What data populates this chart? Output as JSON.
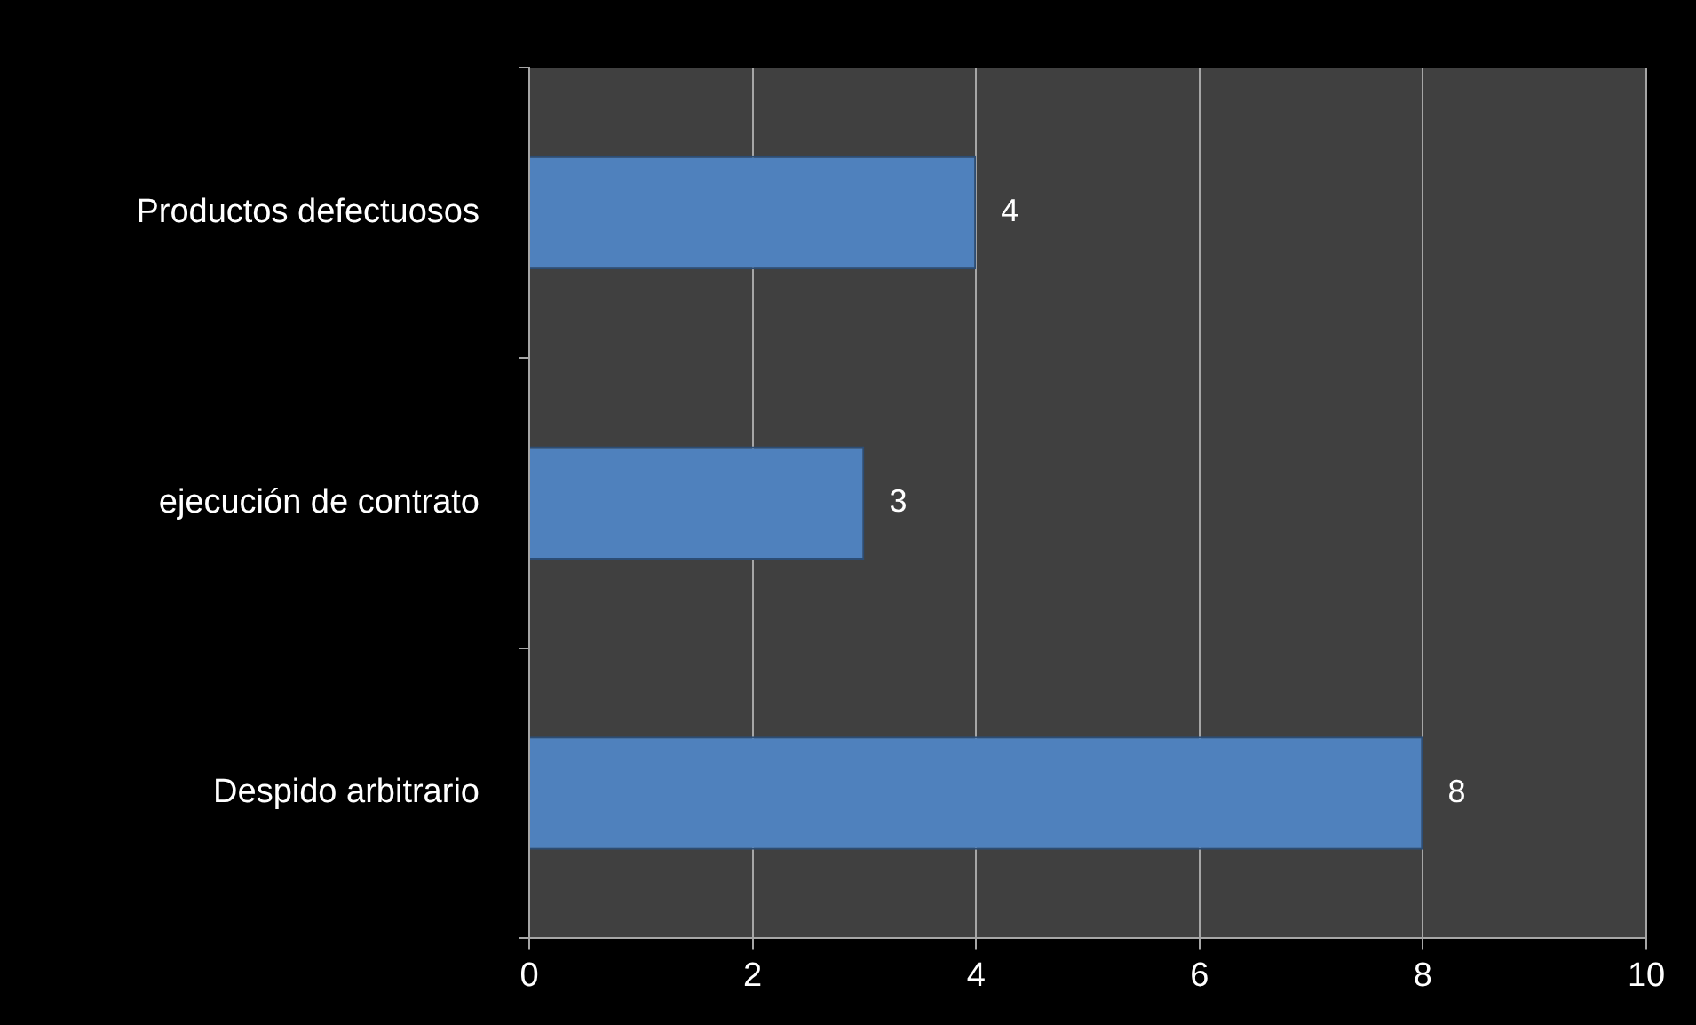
{
  "chart_data": {
    "type": "bar",
    "orientation": "horizontal",
    "categories": [
      "Productos defectuosos",
      "ejecución de contrato",
      "Despido arbitrario"
    ],
    "series": [
      {
        "color": "#4f81bd",
        "values": [
          4,
          3,
          8
        ]
      }
    ],
    "xlim": [
      0,
      10
    ],
    "xticks": [
      0,
      2,
      4,
      6,
      8,
      10
    ],
    "grid": "x",
    "data_labels": true,
    "legend": false
  }
}
